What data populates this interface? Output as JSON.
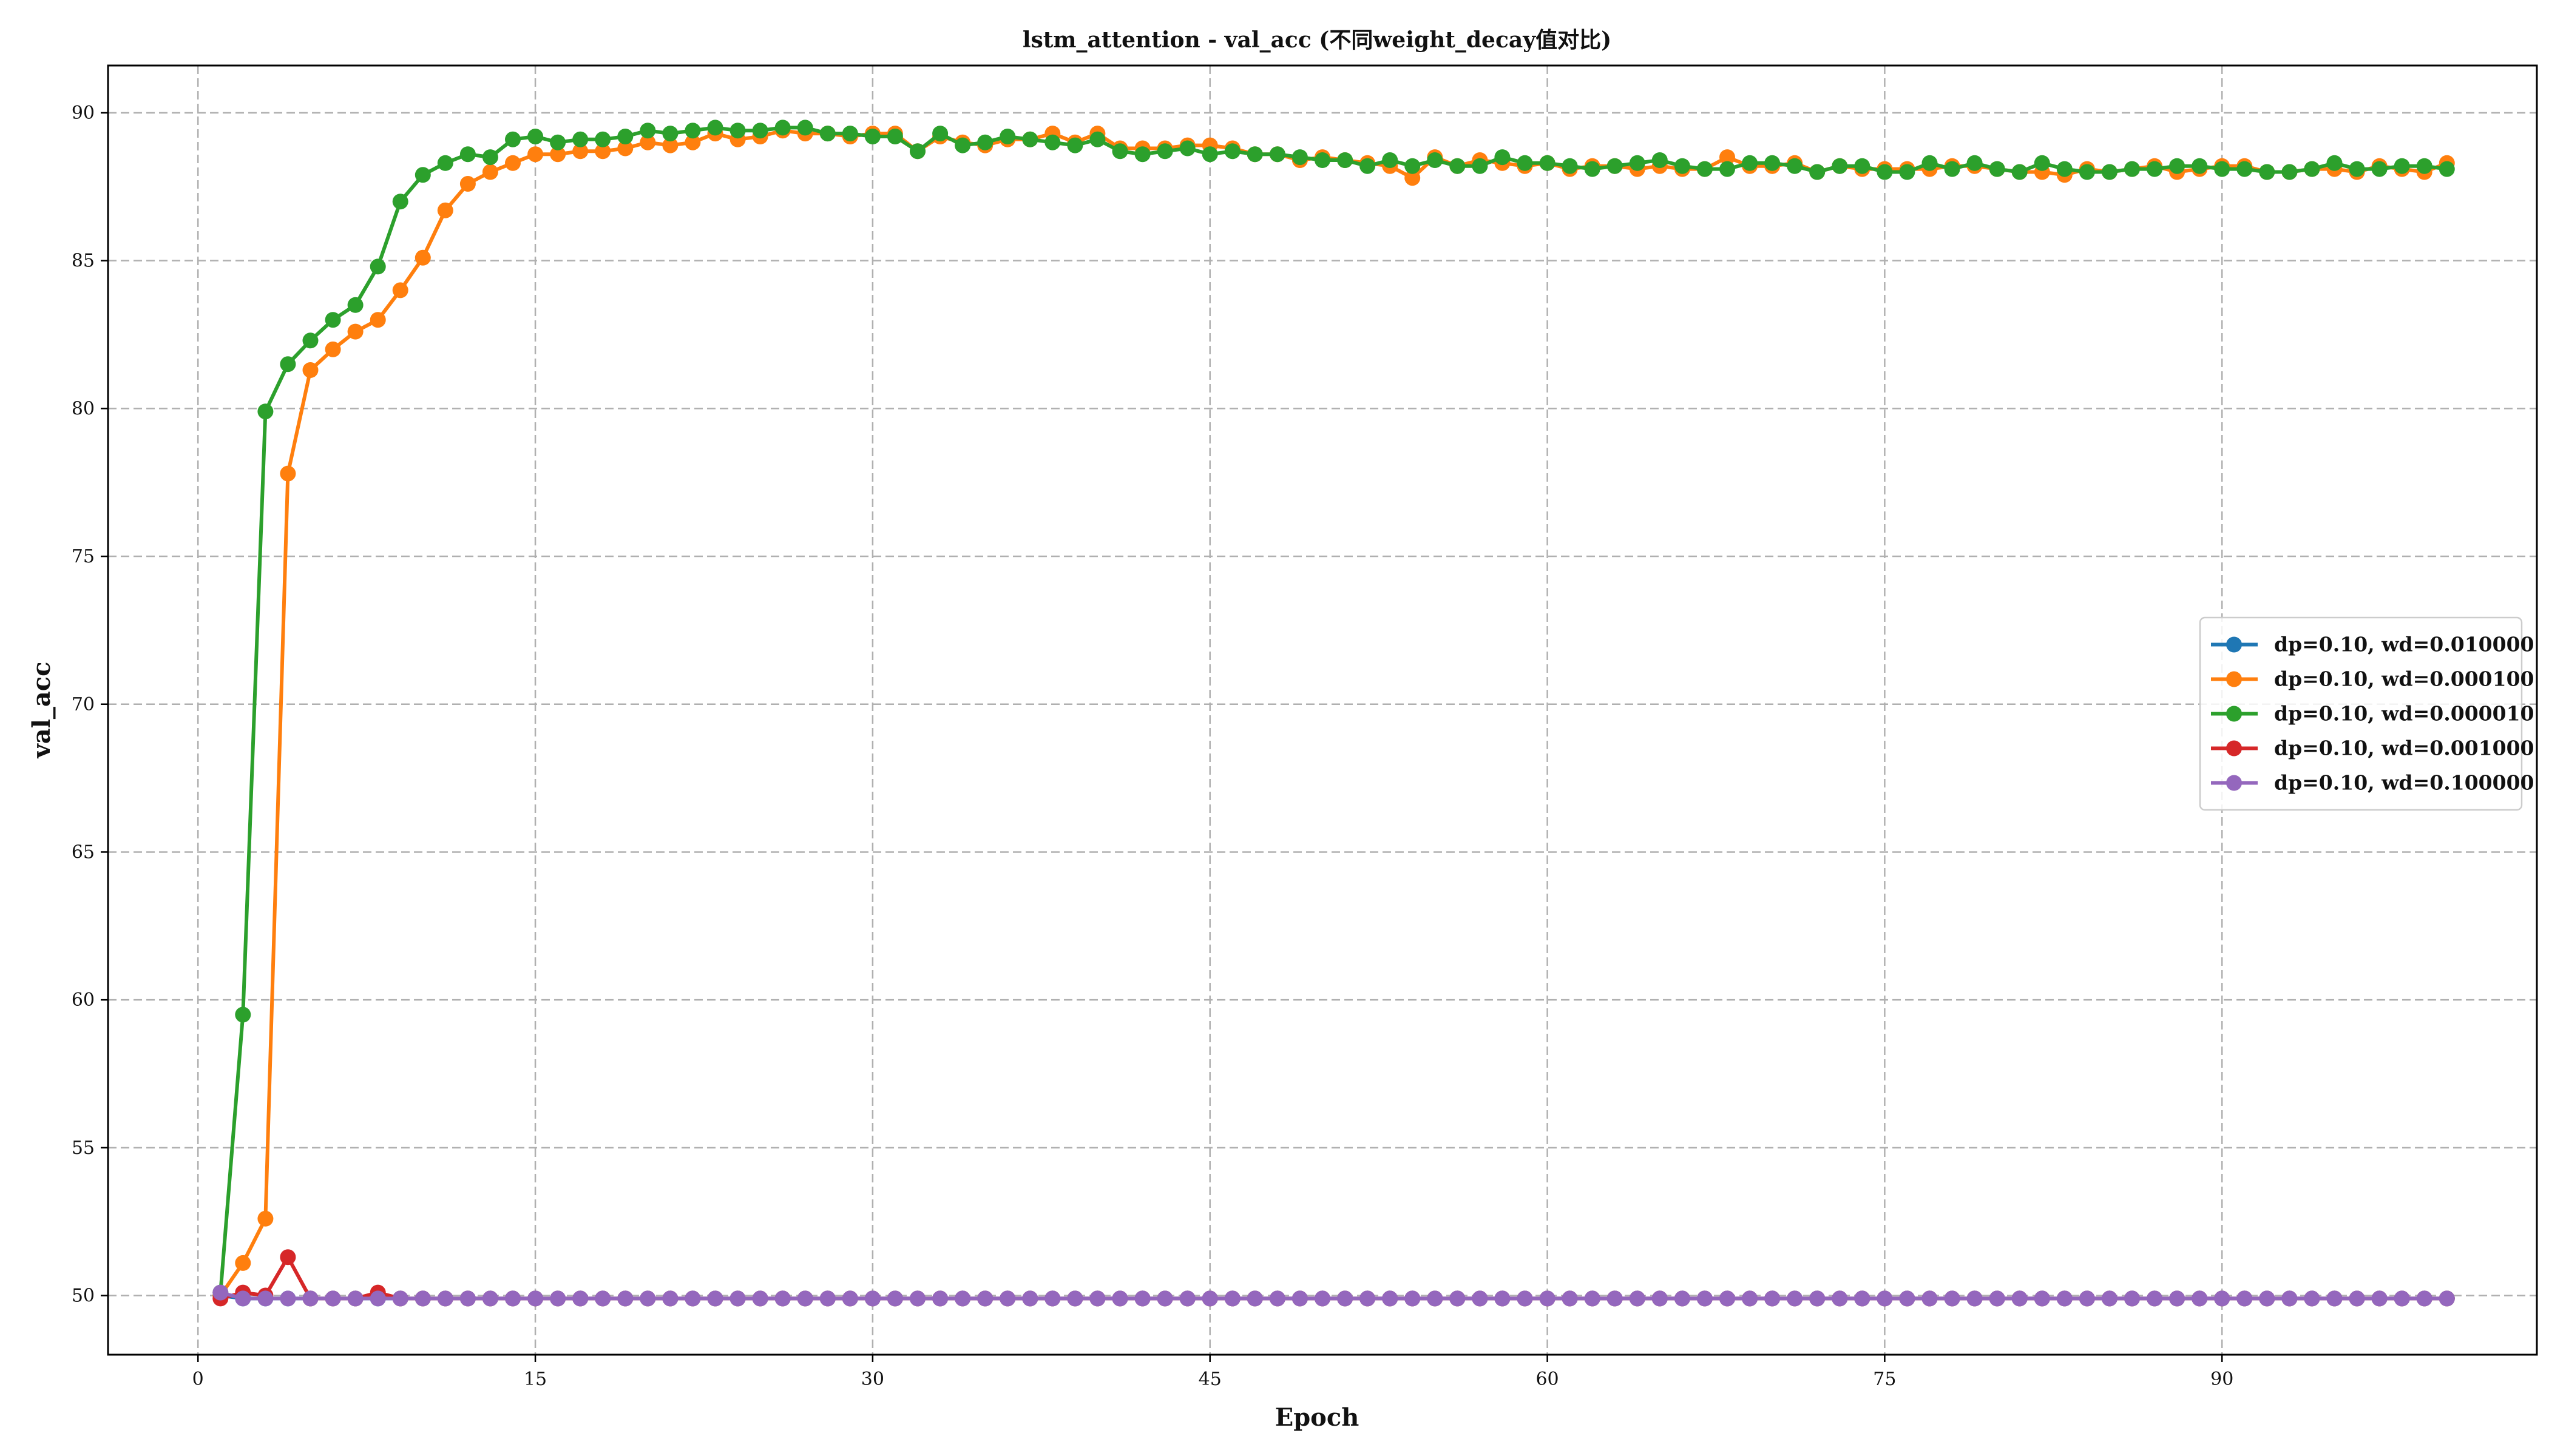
{
  "chart_data": {
    "type": "line",
    "title": "lstm_attention - val_acc (不同weight_decay值对比)",
    "xlabel": "Epoch",
    "ylabel": "val_acc",
    "xlim": [
      -4,
      104
    ],
    "ylim": [
      48,
      91.6
    ],
    "xticks": [
      0,
      15,
      30,
      45,
      60,
      75,
      90
    ],
    "yticks": [
      50,
      55,
      60,
      65,
      70,
      75,
      80,
      85,
      90
    ],
    "grid": true,
    "legend_position": "center-right",
    "series": [
      {
        "name": "dp=0.10, wd=0.010000",
        "color": "#1f77b4",
        "x_start": 1,
        "values": [
          50.0,
          49.9,
          49.9,
          49.9,
          49.9,
          49.9,
          49.9,
          49.9,
          49.9,
          49.9,
          49.9,
          49.9,
          49.9,
          49.9,
          49.9,
          49.9,
          49.9,
          49.9,
          49.9,
          49.9,
          49.9,
          49.9,
          49.9,
          49.9,
          49.9,
          49.9,
          49.9,
          49.9,
          49.9,
          49.9,
          49.9,
          49.9,
          49.9,
          49.9,
          49.9,
          49.9,
          49.9,
          49.9,
          49.9,
          49.9,
          49.9,
          49.9,
          49.9,
          49.9,
          49.9,
          49.9,
          49.9,
          49.9,
          49.9,
          49.9,
          49.9,
          49.9,
          49.9,
          49.9,
          49.9,
          49.9,
          49.9,
          49.9,
          49.9,
          49.9,
          49.9,
          49.9,
          49.9,
          49.9,
          49.9,
          49.9,
          49.9,
          49.9,
          49.9,
          49.9,
          49.9,
          49.9,
          49.9,
          49.9,
          49.9,
          49.9,
          49.9,
          49.9,
          49.9,
          49.9,
          49.9,
          49.9,
          49.9,
          49.9,
          49.9,
          49.9,
          49.9,
          49.9,
          49.9,
          49.9,
          49.9,
          49.9,
          49.9,
          49.9,
          49.9,
          49.9,
          49.9,
          49.9,
          49.9,
          49.9
        ]
      },
      {
        "name": "dp=0.10, wd=0.000100",
        "color": "#ff7f0e",
        "x_start": 1,
        "values": [
          50.0,
          51.1,
          52.6,
          77.8,
          81.3,
          82.0,
          82.6,
          83.0,
          84.0,
          85.1,
          86.7,
          87.6,
          88.0,
          88.3,
          88.6,
          88.6,
          88.7,
          88.7,
          88.8,
          89.0,
          88.9,
          89.0,
          89.3,
          89.1,
          89.2,
          89.4,
          89.3,
          89.3,
          89.2,
          89.3,
          89.3,
          88.7,
          89.2,
          89.0,
          88.9,
          89.1,
          89.1,
          89.3,
          89.0,
          89.3,
          88.8,
          88.8,
          88.8,
          88.9,
          88.9,
          88.8,
          88.6,
          88.6,
          88.4,
          88.5,
          88.4,
          88.3,
          88.2,
          87.8,
          88.5,
          88.2,
          88.4,
          88.3,
          88.2,
          88.3,
          88.1,
          88.2,
          88.2,
          88.1,
          88.2,
          88.1,
          88.1,
          88.5,
          88.2,
          88.2,
          88.3,
          88.0,
          88.2,
          88.1,
          88.1,
          88.1,
          88.1,
          88.2,
          88.2,
          88.1,
          88.0,
          88.0,
          87.9,
          88.1,
          88.0,
          88.1,
          88.2,
          88.0,
          88.1,
          88.2,
          88.2,
          88.0,
          88.0,
          88.1,
          88.1,
          88.0,
          88.2,
          88.1,
          88.0,
          88.3
        ]
      },
      {
        "name": "dp=0.10, wd=0.000010",
        "color": "#2ca02c",
        "x_start": 1,
        "values": [
          50.1,
          59.5,
          79.9,
          81.5,
          82.3,
          83.0,
          83.5,
          84.8,
          87.0,
          87.9,
          88.3,
          88.6,
          88.5,
          89.1,
          89.2,
          89.0,
          89.1,
          89.1,
          89.2,
          89.4,
          89.3,
          89.4,
          89.5,
          89.4,
          89.4,
          89.5,
          89.5,
          89.3,
          89.3,
          89.2,
          89.2,
          88.7,
          89.3,
          88.9,
          89.0,
          89.2,
          89.1,
          89.0,
          88.9,
          89.1,
          88.7,
          88.6,
          88.7,
          88.8,
          88.6,
          88.7,
          88.6,
          88.6,
          88.5,
          88.4,
          88.4,
          88.2,
          88.4,
          88.2,
          88.4,
          88.2,
          88.2,
          88.5,
          88.3,
          88.3,
          88.2,
          88.1,
          88.2,
          88.3,
          88.4,
          88.2,
          88.1,
          88.1,
          88.3,
          88.3,
          88.2,
          88.0,
          88.2,
          88.2,
          88.0,
          88.0,
          88.3,
          88.1,
          88.3,
          88.1,
          88.0,
          88.3,
          88.1,
          88.0,
          88.0,
          88.1,
          88.1,
          88.2,
          88.2,
          88.1,
          88.1,
          88.0,
          88.0,
          88.1,
          88.3,
          88.1,
          88.1,
          88.2,
          88.2,
          88.1
        ]
      },
      {
        "name": "dp=0.10, wd=0.001000",
        "color": "#d62728",
        "x_start": 1,
        "values": [
          49.9,
          50.1,
          50.0,
          51.3,
          49.9,
          49.9,
          49.9,
          50.1,
          49.9,
          49.9,
          49.9,
          49.9,
          49.9,
          49.9,
          49.9,
          49.9,
          49.9,
          49.9,
          49.9,
          49.9,
          49.9,
          49.9,
          49.9,
          49.9,
          49.9,
          49.9,
          49.9,
          49.9,
          49.9,
          49.9,
          49.9,
          49.9,
          49.9,
          49.9,
          49.9,
          49.9,
          49.9,
          49.9,
          49.9,
          49.9,
          49.9,
          49.9,
          49.9,
          49.9,
          49.9,
          49.9,
          49.9,
          49.9,
          49.9,
          49.9,
          49.9,
          49.9,
          49.9,
          49.9,
          49.9,
          49.9,
          49.9,
          49.9,
          49.9,
          49.9,
          49.9,
          49.9,
          49.9,
          49.9,
          49.9,
          49.9,
          49.9,
          49.9,
          49.9,
          49.9,
          49.9,
          49.9,
          49.9,
          49.9,
          49.9,
          49.9,
          49.9,
          49.9,
          49.9,
          49.9,
          49.9,
          49.9,
          49.9,
          49.9,
          49.9,
          49.9,
          49.9,
          49.9,
          49.9,
          49.9,
          49.9,
          49.9,
          49.9,
          49.9,
          49.9,
          49.9,
          49.9,
          49.9,
          49.9,
          49.9
        ]
      },
      {
        "name": "dp=0.10, wd=0.100000",
        "color": "#9467bd",
        "x_start": 1,
        "values": [
          50.1,
          49.9,
          49.9,
          49.9,
          49.9,
          49.9,
          49.9,
          49.9,
          49.9,
          49.9,
          49.9,
          49.9,
          49.9,
          49.9,
          49.9,
          49.9,
          49.9,
          49.9,
          49.9,
          49.9,
          49.9,
          49.9,
          49.9,
          49.9,
          49.9,
          49.9,
          49.9,
          49.9,
          49.9,
          49.9,
          49.9,
          49.9,
          49.9,
          49.9,
          49.9,
          49.9,
          49.9,
          49.9,
          49.9,
          49.9,
          49.9,
          49.9,
          49.9,
          49.9,
          49.9,
          49.9,
          49.9,
          49.9,
          49.9,
          49.9,
          49.9,
          49.9,
          49.9,
          49.9,
          49.9,
          49.9,
          49.9,
          49.9,
          49.9,
          49.9,
          49.9,
          49.9,
          49.9,
          49.9,
          49.9,
          49.9,
          49.9,
          49.9,
          49.9,
          49.9,
          49.9,
          49.9,
          49.9,
          49.9,
          49.9,
          49.9,
          49.9,
          49.9,
          49.9,
          49.9,
          49.9,
          49.9,
          49.9,
          49.9,
          49.9,
          49.9,
          49.9,
          49.9,
          49.9,
          49.9,
          49.9,
          49.9,
          49.9,
          49.9,
          49.9,
          49.9,
          49.9,
          49.9,
          49.9,
          49.9
        ]
      }
    ]
  }
}
